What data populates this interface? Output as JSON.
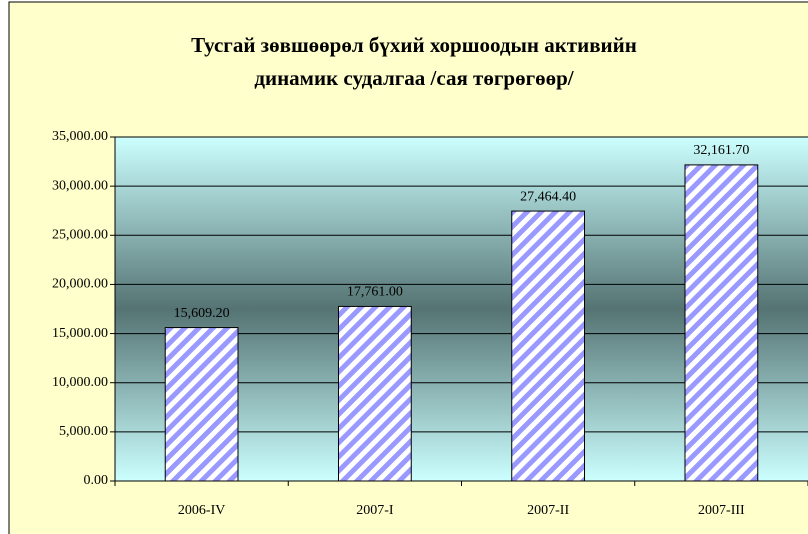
{
  "chart_data": {
    "type": "bar",
    "title_lines": [
      "Тусгай зөвшөөрөл бүхий хоршоодын активийн",
      "динамик судалгаа /сая төгрөгөөр/"
    ],
    "categories": [
      "2006-IV",
      "2007-I",
      "2007-II",
      "2007-III"
    ],
    "values": [
      15609.2,
      17761.0,
      27464.4,
      32161.7
    ],
    "value_labels": [
      "15,609.20",
      "17,761.00",
      "27,464.40",
      "32,161.70"
    ],
    "color": "#9999ff",
    "ylim": [
      0,
      35000
    ],
    "yticks": [
      {
        "value": 0,
        "label": "0.00"
      },
      {
        "value": 5000,
        "label": "5,000.00"
      },
      {
        "value": 10000,
        "label": "10,000.00"
      },
      {
        "value": 15000,
        "label": "15,000.00"
      },
      {
        "value": 20000,
        "label": "20,000.00"
      },
      {
        "value": 25000,
        "label": "25,000.00"
      },
      {
        "value": 30000,
        "label": "30,000.00"
      },
      {
        "value": 35000,
        "label": "35,000.00"
      }
    ],
    "grid": true
  }
}
